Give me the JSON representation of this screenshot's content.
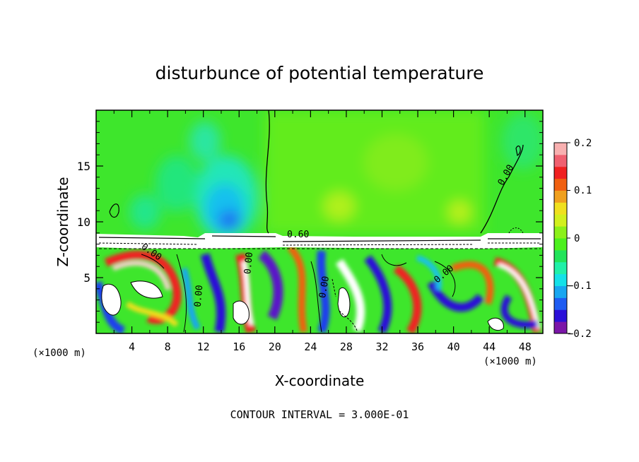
{
  "chart_data": {
    "type": "heatmap",
    "title": "disturbunce of potential temperature",
    "xlabel": "X-coordinate",
    "ylabel": "Z-coordinate",
    "x_unit_label": "(×1000 m)",
    "x_unit_label_right": "(×1000 m)",
    "xlim": [
      0,
      50
    ],
    "ylim": [
      0,
      20
    ],
    "x_ticks": [
      "4",
      "8",
      "12",
      "16",
      "20",
      "24",
      "28",
      "32",
      "36",
      "40",
      "44",
      "48"
    ],
    "y_ticks": [
      "5",
      "10",
      "15"
    ],
    "colorbar": {
      "range": [
        -0.2,
        0.2
      ],
      "tick_labels": [
        "0.2",
        "0.1",
        "0",
        "−0.1",
        "−0.2"
      ],
      "colors": [
        "#7b16a8",
        "#2a10d8",
        "#1e5cf2",
        "#18a6f0",
        "#14e1e8",
        "#20f0a8",
        "#22e45a",
        "#4cf01e",
        "#8cf01a",
        "#d2f01e",
        "#f0e01e",
        "#f0a01e",
        "#f06010",
        "#f02020",
        "#f06070",
        "#f8b0b0"
      ]
    },
    "contour_labels": [
      "0.00",
      "0.60",
      "0.00",
      "0.00",
      "0.00",
      "0.00",
      "0.00",
      "0.00"
    ],
    "footer": "CONTOUR INTERVAL = 3.000E-01"
  }
}
